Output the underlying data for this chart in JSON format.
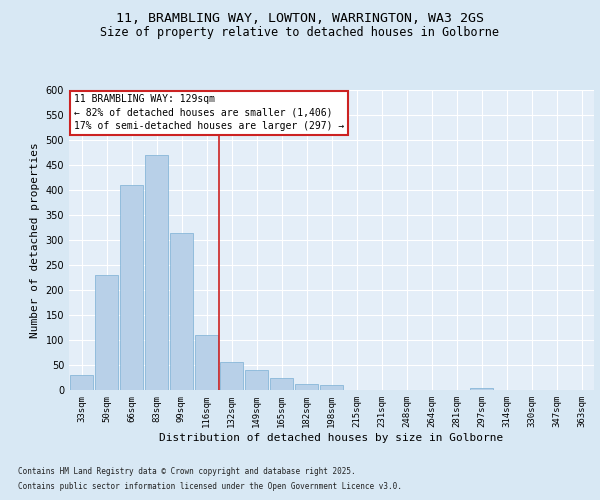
{
  "title_line1": "11, BRAMBLING WAY, LOWTON, WARRINGTON, WA3 2GS",
  "title_line2": "Size of property relative to detached houses in Golborne",
  "xlabel": "Distribution of detached houses by size in Golborne",
  "ylabel": "Number of detached properties",
  "categories": [
    "33sqm",
    "50sqm",
    "66sqm",
    "83sqm",
    "99sqm",
    "116sqm",
    "132sqm",
    "149sqm",
    "165sqm",
    "182sqm",
    "198sqm",
    "215sqm",
    "231sqm",
    "248sqm",
    "264sqm",
    "281sqm",
    "297sqm",
    "314sqm",
    "330sqm",
    "347sqm",
    "363sqm"
  ],
  "values": [
    30,
    230,
    410,
    470,
    315,
    110,
    57,
    40,
    25,
    13,
    10,
    0,
    0,
    0,
    0,
    0,
    5,
    0,
    0,
    0,
    0
  ],
  "bar_color": "#b8d0e8",
  "bar_edge_color": "#7aafd4",
  "vline_x_index": 6.0,
  "vline_color": "#cc2222",
  "annotation_title": "11 BRAMBLING WAY: 129sqm",
  "annotation_line1": "← 82% of detached houses are smaller (1,406)",
  "annotation_line2": "17% of semi-detached houses are larger (297) →",
  "annotation_box_color": "#cc2222",
  "ylim": [
    0,
    600
  ],
  "yticks": [
    0,
    50,
    100,
    150,
    200,
    250,
    300,
    350,
    400,
    450,
    500,
    550,
    600
  ],
  "bg_color": "#d8e8f4",
  "plot_bg_color": "#e4eef8",
  "footer_line1": "Contains HM Land Registry data © Crown copyright and database right 2025.",
  "footer_line2": "Contains public sector information licensed under the Open Government Licence v3.0.",
  "title_fontsize": 9.5,
  "subtitle_fontsize": 8.5,
  "tick_fontsize": 6.5,
  "label_fontsize": 8,
  "annotation_fontsize": 7,
  "footer_fontsize": 5.5
}
